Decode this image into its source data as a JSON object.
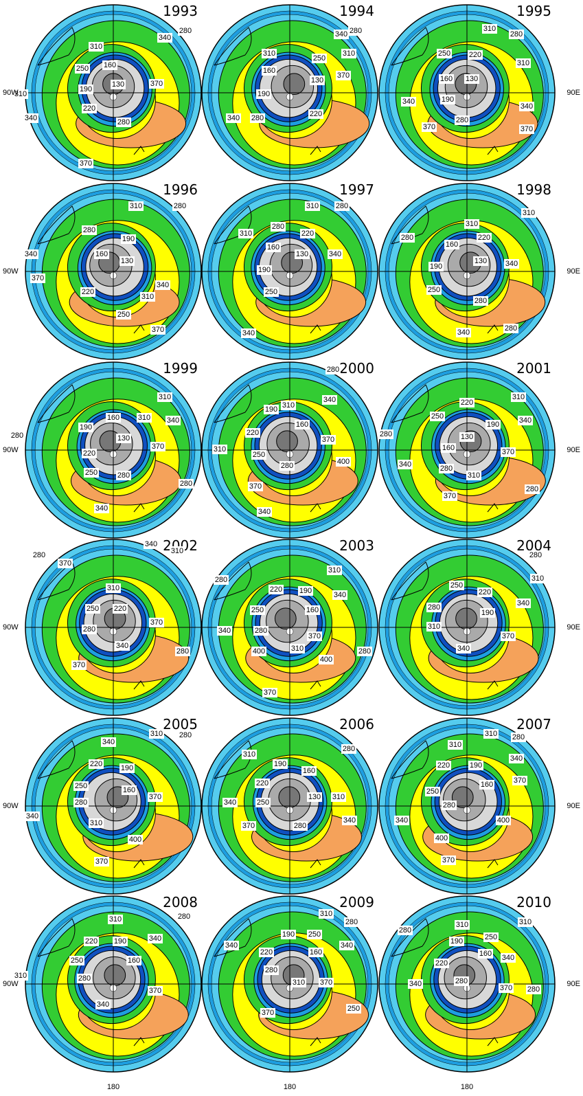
{
  "panels": [
    {
      "year": "1993",
      "contour_labels": [
        340,
        280,
        310,
        250,
        160,
        190,
        130,
        370,
        310,
        220,
        280,
        340,
        370
      ]
    },
    {
      "year": "1994",
      "contour_labels": [
        340,
        280,
        310,
        310,
        250,
        160,
        370,
        130,
        190,
        220,
        340,
        280
      ]
    },
    {
      "year": "1995",
      "contour_labels": [
        310,
        280,
        250,
        220,
        310,
        160,
        130,
        190,
        340,
        340,
        280,
        370,
        370
      ]
    },
    {
      "year": "1996",
      "contour_labels": [
        310,
        280,
        280,
        190,
        160,
        340,
        130,
        340,
        370,
        220,
        310,
        250,
        370
      ]
    },
    {
      "year": "1997",
      "contour_labels": [
        310,
        280,
        310,
        280,
        220,
        160,
        130,
        340,
        190,
        250,
        340
      ]
    },
    {
      "year": "1998",
      "contour_labels": [
        310,
        280,
        310,
        160,
        220,
        130,
        340,
        190,
        250,
        280,
        340,
        280
      ]
    },
    {
      "year": "1999",
      "contour_labels": [
        310,
        340,
        160,
        310,
        190,
        280,
        130,
        370,
        220,
        250,
        280,
        280,
        340
      ]
    },
    {
      "year": "2000",
      "contour_labels": [
        280,
        340,
        310,
        190,
        160,
        220,
        370,
        310,
        250,
        400,
        280,
        370,
        340
      ]
    },
    {
      "year": "2001",
      "contour_labels": [
        220,
        310,
        250,
        190,
        340,
        130,
        280,
        160,
        370,
        340,
        280,
        310,
        280,
        370
      ]
    },
    {
      "year": "2002",
      "contour_labels": [
        340,
        280,
        310,
        370,
        310,
        250,
        220,
        370,
        280,
        340,
        280,
        370
      ]
    },
    {
      "year": "2003",
      "contour_labels": [
        280,
        310,
        220,
        190,
        340,
        250,
        160,
        340,
        280,
        370,
        310,
        400,
        280,
        400,
        370
      ]
    },
    {
      "year": "2004",
      "contour_labels": [
        280,
        310,
        250,
        220,
        340,
        280,
        190,
        310,
        370,
        340
      ]
    },
    {
      "year": "2005",
      "contour_labels": [
        340,
        310,
        280,
        220,
        190,
        250,
        160,
        370,
        280,
        340,
        310,
        400,
        370
      ]
    },
    {
      "year": "2006",
      "contour_labels": [
        280,
        310,
        190,
        160,
        220,
        130,
        310,
        340,
        250,
        340,
        370,
        280
      ]
    },
    {
      "year": "2007",
      "contour_labels": [
        310,
        280,
        310,
        340,
        220,
        190,
        370,
        160,
        250,
        340,
        280,
        400,
        400,
        370
      ]
    },
    {
      "year": "2008",
      "contour_labels": [
        310,
        280,
        220,
        190,
        340,
        250,
        160,
        310,
        280,
        370,
        340
      ]
    },
    {
      "year": "2009",
      "contour_labels": [
        310,
        280,
        190,
        250,
        340,
        340,
        220,
        160,
        280,
        310,
        370,
        370,
        250
      ]
    },
    {
      "year": "2010",
      "contour_labels": [
        310,
        280,
        310,
        250,
        190,
        160,
        220,
        340,
        280,
        370,
        340,
        280
      ]
    }
  ],
  "axis_labels": {
    "west": "90W",
    "east": "90E",
    "south": "180"
  }
}
